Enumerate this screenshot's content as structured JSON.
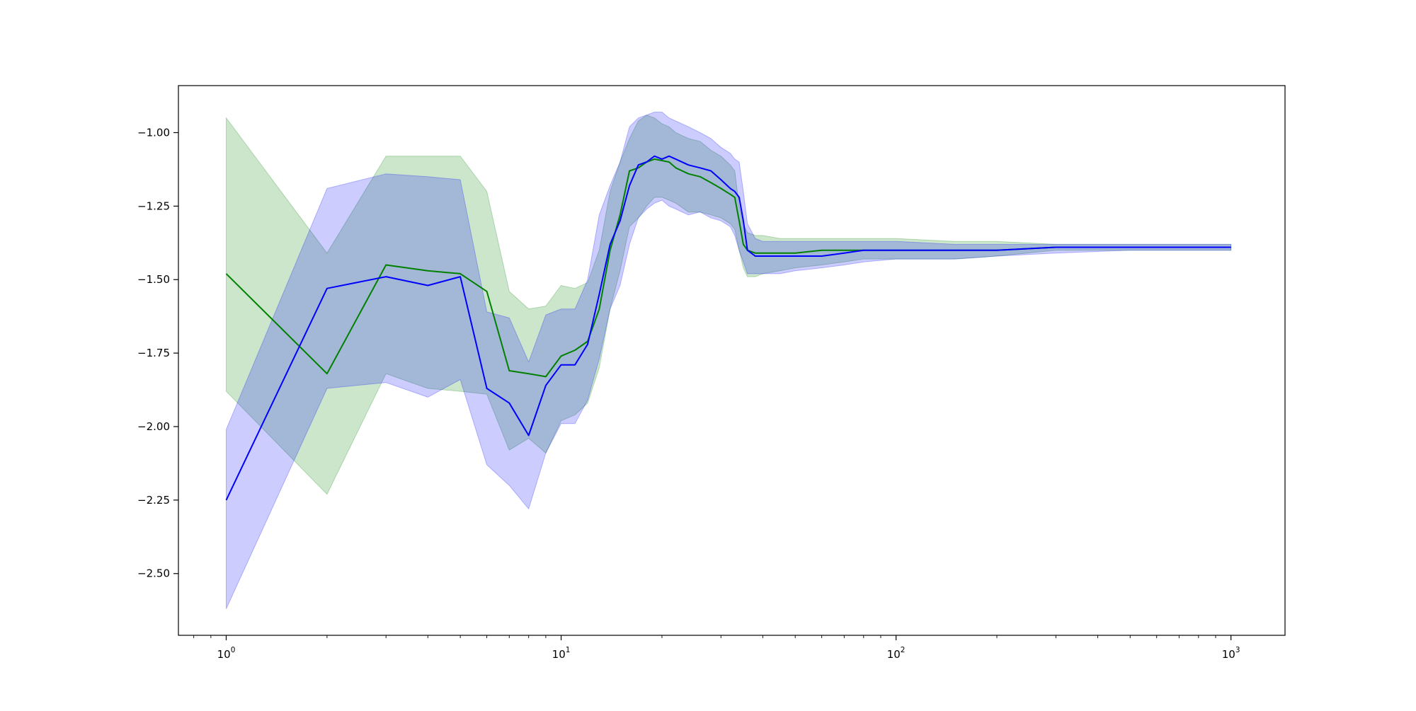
{
  "chart_data": {
    "type": "line",
    "title": "",
    "xlabel": "",
    "ylabel": "",
    "x_scale": "log",
    "xlim": [
      0.72,
      1450
    ],
    "ylim": [
      -2.71,
      -0.84
    ],
    "grid": false,
    "legend": "none",
    "x_ticks": [
      {
        "value": 1,
        "base": "10",
        "exp": "0"
      },
      {
        "value": 10,
        "base": "10",
        "exp": "1"
      },
      {
        "value": 100,
        "base": "10",
        "exp": "2"
      },
      {
        "value": 1000,
        "base": "10",
        "exp": "3"
      }
    ],
    "y_ticks": [
      {
        "value": -1.0,
        "label": "−1.00"
      },
      {
        "value": -1.25,
        "label": "−1.25"
      },
      {
        "value": -1.5,
        "label": "−1.50"
      },
      {
        "value": -1.75,
        "label": "−1.75"
      },
      {
        "value": -2.0,
        "label": "−2.00"
      },
      {
        "value": -2.25,
        "label": "−2.25"
      },
      {
        "value": -2.5,
        "label": "−2.50"
      }
    ],
    "series": [
      {
        "color": "#008000",
        "band_color": "#008000",
        "band_opacity": 0.2,
        "x": [
          1,
          2,
          3,
          4,
          5,
          6,
          7,
          8,
          9,
          10,
          11,
          12,
          13,
          14,
          15,
          16,
          17,
          18,
          19,
          20,
          21,
          22,
          24,
          26,
          28,
          30,
          32,
          33,
          34,
          35,
          36,
          38,
          40,
          45,
          50,
          60,
          70,
          80,
          100,
          150,
          200,
          300,
          500,
          1000
        ],
        "y": [
          -1.48,
          -1.82,
          -1.45,
          -1.47,
          -1.48,
          -1.54,
          -1.81,
          -1.82,
          -1.83,
          -1.76,
          -1.74,
          -1.71,
          -1.6,
          -1.4,
          -1.28,
          -1.13,
          -1.12,
          -1.1,
          -1.09,
          -1.095,
          -1.1,
          -1.12,
          -1.14,
          -1.15,
          -1.17,
          -1.19,
          -1.21,
          -1.22,
          -1.3,
          -1.38,
          -1.4,
          -1.41,
          -1.41,
          -1.41,
          -1.41,
          -1.4,
          -1.4,
          -1.4,
          -1.4,
          -1.4,
          -1.4,
          -1.39,
          -1.39,
          -1.39
        ],
        "upper": [
          -0.95,
          -1.41,
          -1.08,
          -1.08,
          -1.08,
          -1.2,
          -1.54,
          -1.6,
          -1.59,
          -1.52,
          -1.53,
          -1.51,
          -1.4,
          -1.2,
          -1.1,
          -1.02,
          -0.96,
          -0.94,
          -0.95,
          -0.97,
          -0.98,
          -1.0,
          -1.02,
          -1.03,
          -1.06,
          -1.08,
          -1.11,
          -1.13,
          -1.25,
          -1.31,
          -1.34,
          -1.35,
          -1.35,
          -1.36,
          -1.36,
          -1.36,
          -1.36,
          -1.36,
          -1.36,
          -1.37,
          -1.37,
          -1.38,
          -1.38,
          -1.38
        ],
        "lower": [
          -1.88,
          -2.23,
          -1.82,
          -1.87,
          -1.88,
          -1.89,
          -2.08,
          -2.04,
          -2.09,
          -1.98,
          -1.96,
          -1.92,
          -1.8,
          -1.6,
          -1.47,
          -1.32,
          -1.29,
          -1.25,
          -1.22,
          -1.22,
          -1.23,
          -1.24,
          -1.27,
          -1.27,
          -1.28,
          -1.29,
          -1.31,
          -1.33,
          -1.4,
          -1.46,
          -1.49,
          -1.49,
          -1.48,
          -1.47,
          -1.46,
          -1.45,
          -1.44,
          -1.43,
          -1.43,
          -1.43,
          -1.42,
          -1.4,
          -1.4,
          -1.4
        ]
      },
      {
        "color": "#0000ff",
        "band_color": "#0000ff",
        "band_opacity": 0.2,
        "x": [
          1,
          2,
          3,
          4,
          5,
          6,
          7,
          8,
          9,
          10,
          11,
          12,
          13,
          14,
          15,
          16,
          17,
          18,
          19,
          20,
          21,
          22,
          24,
          26,
          28,
          30,
          32,
          33,
          34,
          35,
          36,
          38,
          40,
          45,
          50,
          60,
          70,
          80,
          100,
          150,
          200,
          300,
          500,
          1000
        ],
        "y": [
          -2.25,
          -1.53,
          -1.49,
          -1.52,
          -1.49,
          -1.87,
          -1.92,
          -2.03,
          -1.86,
          -1.79,
          -1.79,
          -1.72,
          -1.55,
          -1.38,
          -1.3,
          -1.18,
          -1.11,
          -1.1,
          -1.08,
          -1.09,
          -1.08,
          -1.09,
          -1.11,
          -1.12,
          -1.13,
          -1.16,
          -1.19,
          -1.2,
          -1.22,
          -1.3,
          -1.4,
          -1.42,
          -1.42,
          -1.42,
          -1.42,
          -1.42,
          -1.41,
          -1.4,
          -1.4,
          -1.4,
          -1.4,
          -1.39,
          -1.39,
          -1.39
        ],
        "upper": [
          -2.01,
          -1.19,
          -1.14,
          -1.15,
          -1.16,
          -1.61,
          -1.63,
          -1.78,
          -1.62,
          -1.6,
          -1.6,
          -1.5,
          -1.28,
          -1.18,
          -1.1,
          -0.98,
          -0.95,
          -0.94,
          -0.93,
          -0.93,
          -0.95,
          -0.96,
          -0.98,
          -1.0,
          -1.02,
          -1.05,
          -1.07,
          -1.09,
          -1.1,
          -1.2,
          -1.31,
          -1.36,
          -1.37,
          -1.37,
          -1.37,
          -1.37,
          -1.37,
          -1.37,
          -1.37,
          -1.38,
          -1.38,
          -1.38,
          -1.38,
          -1.38
        ],
        "lower": [
          -2.62,
          -1.87,
          -1.85,
          -1.9,
          -1.84,
          -2.13,
          -2.2,
          -2.28,
          -2.09,
          -1.99,
          -1.99,
          -1.91,
          -1.77,
          -1.6,
          -1.52,
          -1.38,
          -1.29,
          -1.26,
          -1.24,
          -1.23,
          -1.25,
          -1.26,
          -1.28,
          -1.27,
          -1.29,
          -1.3,
          -1.32,
          -1.35,
          -1.4,
          -1.44,
          -1.48,
          -1.48,
          -1.48,
          -1.48,
          -1.47,
          -1.46,
          -1.45,
          -1.44,
          -1.43,
          -1.43,
          -1.42,
          -1.41,
          -1.4,
          -1.4
        ]
      }
    ]
  }
}
